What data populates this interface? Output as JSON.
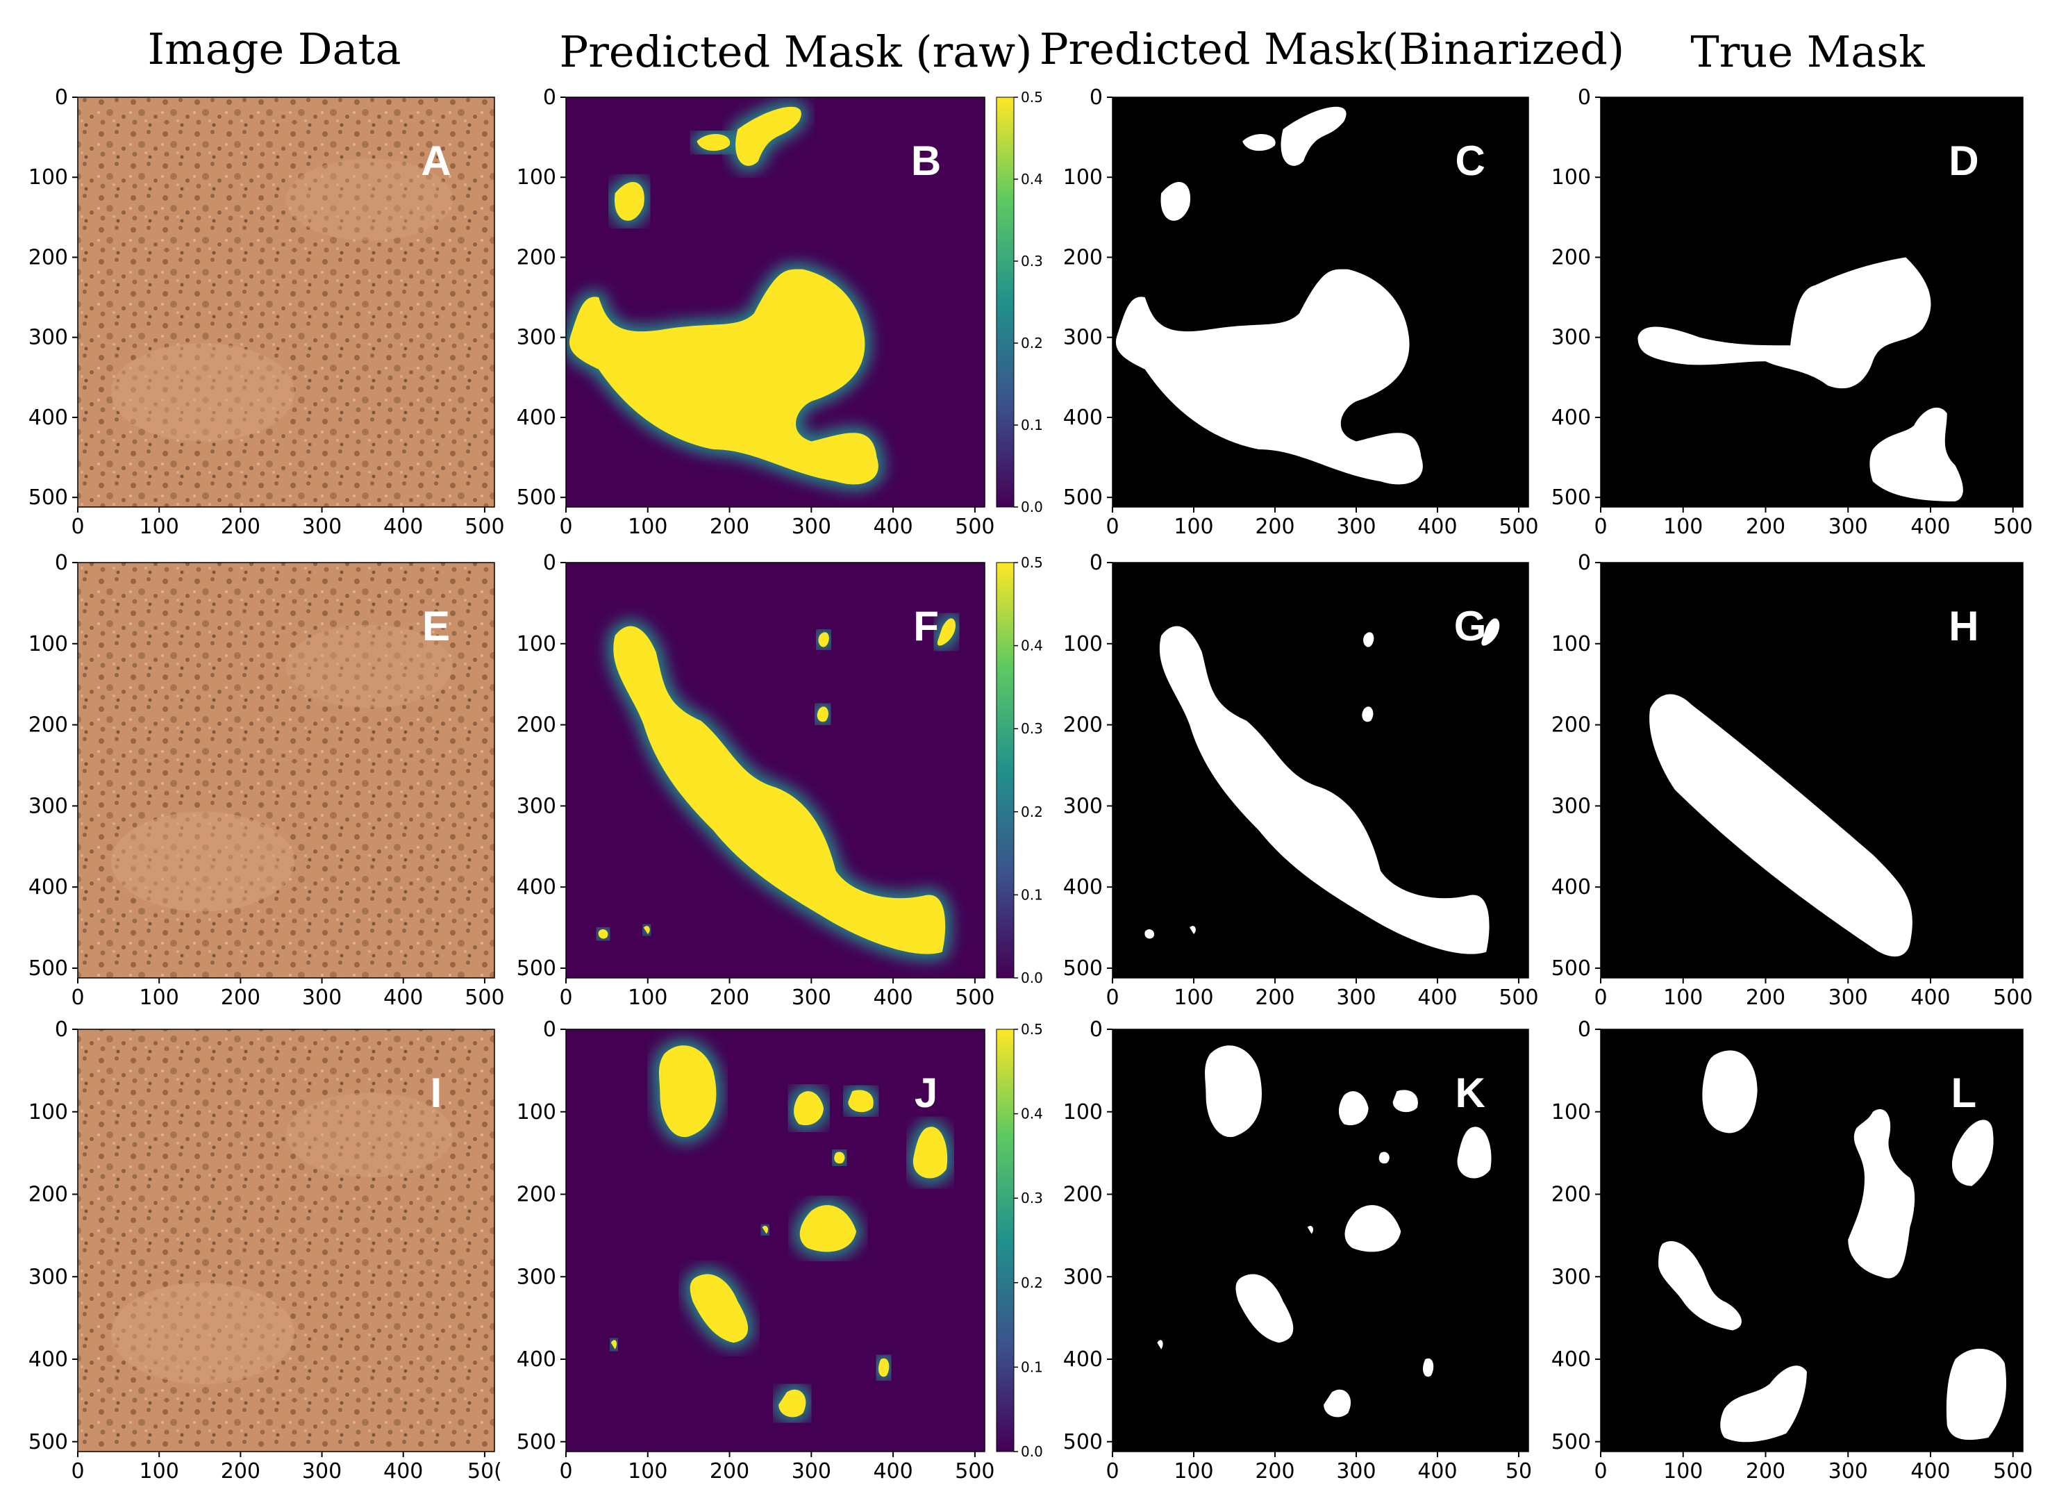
{
  "column_titles": [
    "Image Data",
    "Predicted Mask (raw)",
    "Predicted Mask(Binarized)",
    "True Mask"
  ],
  "panel_letters": [
    [
      "A",
      "B",
      "C",
      "D"
    ],
    [
      "E",
      "F",
      "G",
      "H"
    ],
    [
      "I",
      "J",
      "K",
      "L"
    ]
  ],
  "panel_kinds": [
    "photo",
    "heatmap",
    "binary",
    "binary"
  ],
  "axis_ticks": [
    "0",
    "100",
    "200",
    "300",
    "400",
    "500"
  ],
  "clipped_tick_labels": {
    "row3_col1_x_last": "50(",
    "row3_col3_x_last": "50"
  },
  "colorbar_ticks": [
    "0.5",
    "0.4",
    "0.3",
    "0.2",
    "0.1",
    "0.0"
  ],
  "colors": {
    "photo_bg": "#c9906a",
    "photo_speck": "#5a3a22",
    "heat_low": "#440154",
    "heat_mid": "#21918c",
    "heat_high": "#fde725",
    "mask_bg": "#000000",
    "mask_fg": "#ffffff",
    "letter_dark_bg": "#ffffff",
    "letter_light_bg": "#ffffff"
  }
}
